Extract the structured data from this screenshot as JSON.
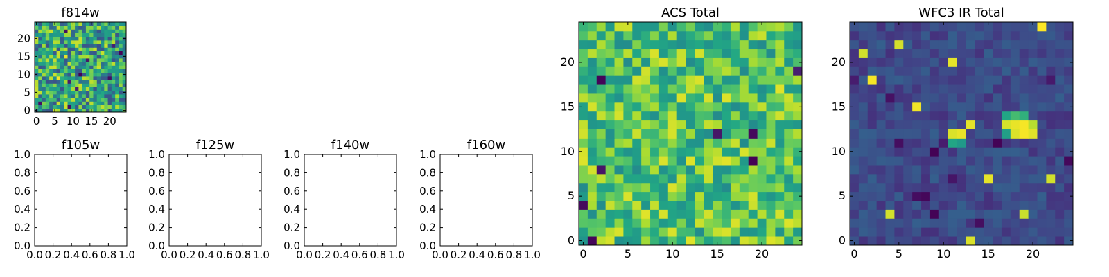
{
  "colors": {
    "colormap": "viridis",
    "frame": "#000000",
    "background": "#ffffff"
  },
  "chart_data": [
    {
      "type": "heatmap",
      "title": "f814w",
      "grid_size": 25,
      "xlim": [
        -0.5,
        24.5
      ],
      "ylim": [
        -0.5,
        24.5
      ],
      "xticks": [
        0,
        5,
        10,
        15,
        20
      ],
      "yticks": [
        0,
        5,
        10,
        15,
        20
      ],
      "origin": "lower",
      "cmap": "viridis",
      "seed": 814,
      "noise_level": [
        0.62,
        0.18
      ],
      "outliers": 12,
      "sources": []
    },
    {
      "type": "heatmap",
      "title": "f105w",
      "empty": true,
      "xlim": [
        0,
        1
      ],
      "ylim": [
        0,
        1
      ],
      "xticks": [
        0.0,
        0.2,
        0.4,
        0.6,
        0.8,
        1.0
      ],
      "yticks": [
        0.0,
        0.2,
        0.4,
        0.6,
        0.8,
        1.0
      ]
    },
    {
      "type": "heatmap",
      "title": "f125w",
      "empty": true,
      "xlim": [
        0,
        1
      ],
      "ylim": [
        0,
        1
      ],
      "xticks": [
        0.0,
        0.2,
        0.4,
        0.6,
        0.8,
        1.0
      ],
      "yticks": [
        0.0,
        0.2,
        0.4,
        0.6,
        0.8,
        1.0
      ]
    },
    {
      "type": "heatmap",
      "title": "f140w",
      "empty": true,
      "xlim": [
        0,
        1
      ],
      "ylim": [
        0,
        1
      ],
      "xticks": [
        0.0,
        0.2,
        0.4,
        0.6,
        0.8,
        1.0
      ],
      "yticks": [
        0.0,
        0.2,
        0.4,
        0.6,
        0.8,
        1.0
      ]
    },
    {
      "type": "heatmap",
      "title": "f160w",
      "empty": true,
      "xlim": [
        0,
        1
      ],
      "ylim": [
        0,
        1
      ],
      "xticks": [
        0.0,
        0.2,
        0.4,
        0.6,
        0.8,
        1.0
      ],
      "yticks": [
        0.0,
        0.2,
        0.4,
        0.6,
        0.8,
        1.0
      ]
    },
    {
      "type": "heatmap",
      "title": "ACS Total",
      "grid_size": 25,
      "xlim": [
        -0.5,
        24.5
      ],
      "ylim": [
        -0.5,
        24.5
      ],
      "xticks": [
        0,
        5,
        10,
        15,
        20
      ],
      "yticks": [
        0,
        5,
        10,
        15,
        20
      ],
      "origin": "lower",
      "cmap": "viridis",
      "seed": 1234,
      "noise_level": [
        0.72,
        0.14
      ],
      "outliers": 12,
      "sources": []
    },
    {
      "type": "heatmap",
      "title": "WFC3 IR Total",
      "grid_size": 25,
      "xlim": [
        -0.5,
        24.5
      ],
      "ylim": [
        -0.5,
        24.5
      ],
      "xticks": [
        0,
        5,
        10,
        15,
        20
      ],
      "yticks": [
        0,
        5,
        10,
        15,
        20
      ],
      "origin": "lower",
      "cmap": "viridis",
      "seed": 3,
      "noise_level": [
        0.28,
        0.06
      ],
      "outliers": 26,
      "sources": [
        {
          "x": 11,
          "y": 12,
          "value": 0.95
        },
        {
          "x": 12,
          "y": 12,
          "value": 0.97
        },
        {
          "x": 11,
          "y": 11,
          "value": 0.62
        },
        {
          "x": 12,
          "y": 11,
          "value": 0.55
        },
        {
          "x": 17,
          "y": 13,
          "value": 0.94
        },
        {
          "x": 18,
          "y": 13,
          "value": 0.97
        },
        {
          "x": 19,
          "y": 13,
          "value": 0.99
        },
        {
          "x": 18,
          "y": 12,
          "value": 0.95
        },
        {
          "x": 19,
          "y": 12,
          "value": 0.99
        },
        {
          "x": 20,
          "y": 12,
          "value": 0.96
        },
        {
          "x": 20,
          "y": 13,
          "value": 0.9
        },
        {
          "x": 17,
          "y": 14,
          "value": 0.62
        },
        {
          "x": 18,
          "y": 14,
          "value": 0.7
        },
        {
          "x": 19,
          "y": 14,
          "value": 0.66
        },
        {
          "x": 17,
          "y": 12,
          "value": 0.58
        }
      ]
    }
  ]
}
